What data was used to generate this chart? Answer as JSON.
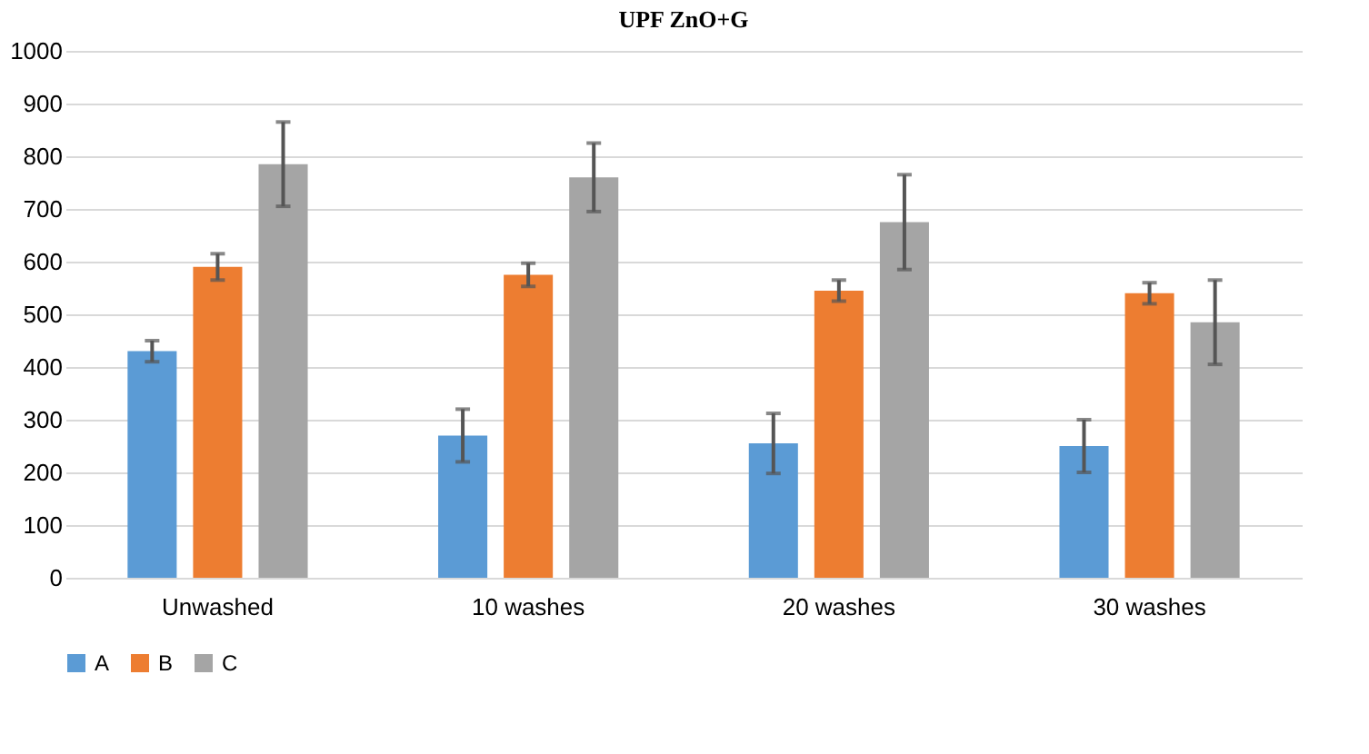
{
  "chart_data": {
    "type": "bar",
    "title": "UPF ZnO+G",
    "categories": [
      "Unwashed",
      "10 washes",
      "20 washes",
      "30 washes"
    ],
    "series": [
      {
        "name": "A",
        "color": "#5b9bd5",
        "values": [
          430,
          270,
          255,
          250
        ],
        "errors": [
          20,
          50,
          57,
          50
        ]
      },
      {
        "name": "B",
        "color": "#ed7d31",
        "values": [
          590,
          575,
          545,
          540
        ],
        "errors": [
          25,
          22,
          20,
          20
        ]
      },
      {
        "name": "C",
        "color": "#a5a5a5",
        "values": [
          785,
          760,
          675,
          485
        ],
        "errors": [
          80,
          65,
          90,
          80
        ]
      }
    ],
    "ylim": [
      0,
      1000
    ],
    "yticks": [
      0,
      100,
      200,
      300,
      400,
      500,
      600,
      700,
      800,
      900,
      1000
    ],
    "grid": "y",
    "legend": "bottom"
  }
}
